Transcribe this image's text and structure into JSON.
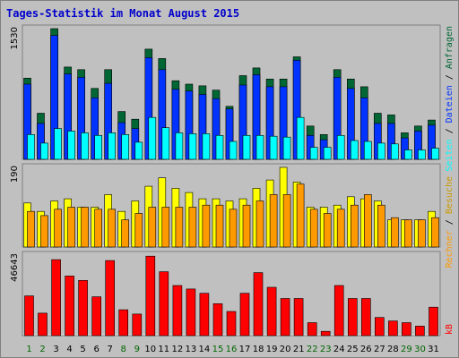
{
  "title": "Tages-Statistik im Monat August 2015",
  "colors": {
    "background": "#c0c0c0",
    "title": "#0000cc",
    "hits": "#006633",
    "files": "#0033ff",
    "pages": "#00ffff",
    "visits": "#ffff00",
    "sites": "#ff9900",
    "kb": "#ff0000",
    "weekday": "#008000",
    "weekend": "#006600"
  },
  "chart_data": [
    {
      "type": "bar",
      "title": "Tages-Statistik im Monat August 2015",
      "categories": [
        "1",
        "2",
        "3",
        "4",
        "5",
        "6",
        "7",
        "8",
        "9",
        "10",
        "11",
        "12",
        "13",
        "14",
        "15",
        "16",
        "17",
        "18",
        "19",
        "20",
        "21",
        "22",
        "23",
        "24",
        "25",
        "26",
        "27",
        "28",
        "29",
        "30",
        "31"
      ],
      "weekend_days": [
        "1",
        "2",
        "8",
        "9",
        "15",
        "16",
        "22",
        "23",
        "29",
        "30"
      ],
      "y_max_label": "1530",
      "ylim": [
        0,
        1530
      ],
      "right_label": [
        "Anfragen",
        "Dateien",
        "Seiten"
      ],
      "series": [
        {
          "name": "Anfragen",
          "values": [
            950,
            540,
            1530,
            1080,
            1050,
            830,
            1050,
            560,
            470,
            1290,
            1180,
            920,
            880,
            860,
            810,
            620,
            980,
            1070,
            940,
            940,
            1200,
            390,
            290,
            1050,
            940,
            850,
            540,
            520,
            310,
            390,
            460
          ]
        },
        {
          "name": "Dateien",
          "values": [
            880,
            420,
            1450,
            1000,
            960,
            720,
            890,
            430,
            360,
            1190,
            1050,
            820,
            800,
            760,
            710,
            590,
            870,
            990,
            850,
            850,
            1160,
            280,
            230,
            960,
            830,
            720,
            420,
            420,
            250,
            330,
            400
          ]
        },
        {
          "name": "Seiten",
          "values": [
            290,
            190,
            360,
            330,
            310,
            280,
            310,
            290,
            200,
            490,
            370,
            310,
            300,
            300,
            280,
            210,
            280,
            280,
            270,
            260,
            490,
            140,
            140,
            280,
            220,
            210,
            190,
            180,
            110,
            110,
            130
          ]
        }
      ]
    },
    {
      "type": "bar",
      "categories": [
        "1",
        "2",
        "3",
        "4",
        "5",
        "6",
        "7",
        "8",
        "9",
        "10",
        "11",
        "12",
        "13",
        "14",
        "15",
        "16",
        "17",
        "18",
        "19",
        "20",
        "21",
        "22",
        "23",
        "24",
        "25",
        "26",
        "27",
        "28",
        "29",
        "30",
        "31"
      ],
      "y_max_label": "190",
      "ylim": [
        0,
        190
      ],
      "right_label": [
        "Besuche",
        "Rechner"
      ],
      "series": [
        {
          "name": "Besuche",
          "values": [
            105,
            85,
            110,
            115,
            95,
            95,
            125,
            85,
            110,
            145,
            165,
            140,
            130,
            115,
            115,
            110,
            115,
            140,
            160,
            190,
            155,
            95,
            95,
            100,
            120,
            115,
            110,
            65,
            65,
            65,
            85
          ]
        },
        {
          "name": "Rechner",
          "values": [
            85,
            75,
            90,
            95,
            95,
            90,
            90,
            65,
            80,
            95,
            95,
            95,
            95,
            100,
            100,
            90,
            100,
            110,
            125,
            125,
            150,
            90,
            80,
            90,
            100,
            125,
            100,
            70,
            65,
            65,
            70
          ]
        }
      ]
    },
    {
      "type": "bar",
      "categories": [
        "1",
        "2",
        "3",
        "4",
        "5",
        "6",
        "7",
        "8",
        "9",
        "10",
        "11",
        "12",
        "13",
        "14",
        "15",
        "16",
        "17",
        "18",
        "19",
        "20",
        "21",
        "22",
        "23",
        "24",
        "25",
        "26",
        "27",
        "28",
        "29",
        "30",
        "31"
      ],
      "y_max_label": "46643",
      "ylim": [
        0,
        46643
      ],
      "right_label": [
        "kB"
      ],
      "series": [
        {
          "name": "kB",
          "values": [
            23000,
            13000,
            44000,
            34500,
            32000,
            22500,
            43500,
            15000,
            12500,
            46000,
            37000,
            29000,
            27000,
            24500,
            18500,
            14000,
            24500,
            36500,
            28000,
            21500,
            21500,
            7500,
            2500,
            29000,
            21500,
            21500,
            10500,
            8500,
            7500,
            5500,
            16500
          ]
        }
      ]
    }
  ]
}
